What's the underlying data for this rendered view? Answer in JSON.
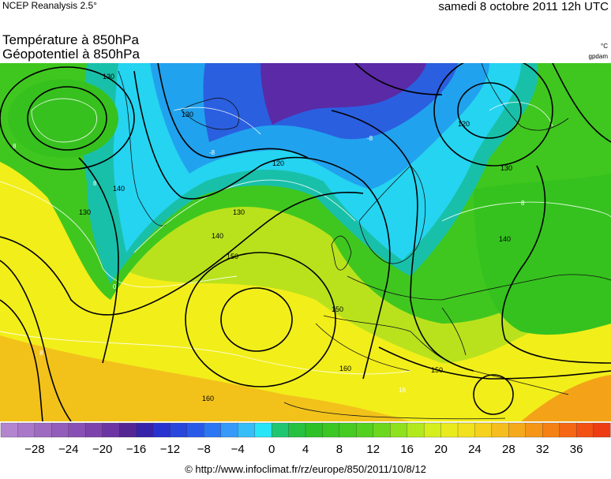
{
  "header": {
    "source": "NCEP Reanalysis 2.5°",
    "date": "samedi 8 octobre 2011 12h UTC",
    "title_line1": "Température à 850hPa",
    "title_line2": "Géopotentiel à 850hPa",
    "unit_temperature": "°C",
    "unit_geopotential": "gpdam"
  },
  "map": {
    "description_type": "temperature shading with geopotential contours",
    "geopotential_contour_labels": [
      {
        "label": "130"
      },
      {
        "label": "130"
      },
      {
        "label": "120"
      },
      {
        "label": "130"
      },
      {
        "label": "140"
      },
      {
        "label": "150"
      },
      {
        "label": "140"
      },
      {
        "label": "130"
      },
      {
        "label": "120"
      },
      {
        "label": "130"
      },
      {
        "label": "140"
      },
      {
        "label": "150"
      },
      {
        "label": "150"
      },
      {
        "label": "160"
      },
      {
        "label": "160"
      }
    ],
    "temperature_contour_labels": [
      {
        "label": "8"
      },
      {
        "label": "8"
      },
      {
        "label": "0"
      },
      {
        "label": "-8"
      },
      {
        "label": "-8"
      },
      {
        "label": "8"
      },
      {
        "label": "8"
      },
      {
        "label": "16"
      }
    ]
  },
  "scale": {
    "ticks": [
      "−28",
      "−24",
      "−20",
      "−16",
      "−12",
      "−8",
      "−4",
      "0",
      "4",
      "8",
      "12",
      "16",
      "20",
      "24",
      "28",
      "32",
      "36"
    ],
    "min": -32,
    "max": 40,
    "step": 2
  },
  "footer": {
    "credit": "© http://www.infoclimat.fr/rz/europe/850/2011/10/8/12"
  }
}
